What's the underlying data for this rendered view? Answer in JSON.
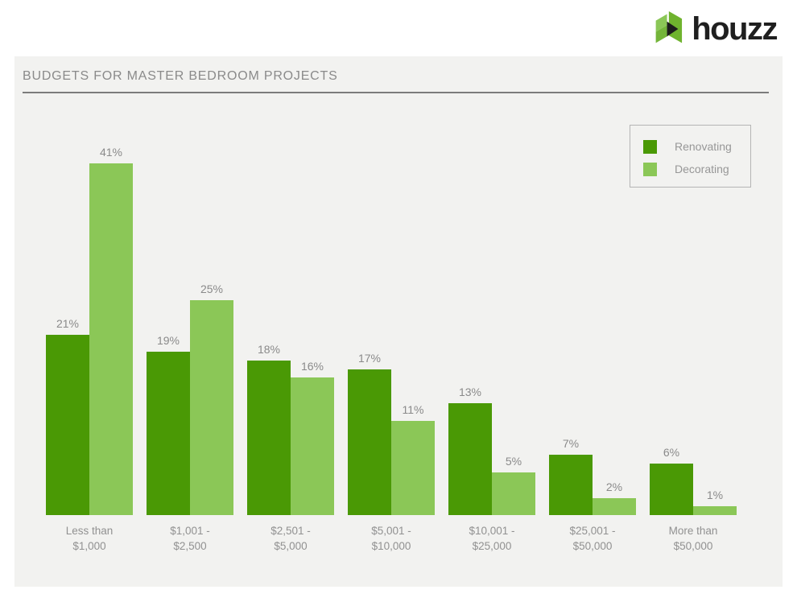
{
  "page": {
    "background": "#ffffff",
    "panel_background": "#f2f2f0"
  },
  "header": {
    "logo_text": "houzz"
  },
  "legend": {
    "items": [
      {
        "label": "Renovating",
        "color": "#4a9905"
      },
      {
        "label": "Decorating",
        "color": "#8bc757"
      }
    ]
  },
  "chart_data": {
    "type": "bar",
    "title": "BUDGETS FOR MASTER BEDROOM PROJECTS",
    "categories": [
      [
        "Less than",
        "$1,000"
      ],
      [
        "$1,001 -",
        "$2,500"
      ],
      [
        "$2,501 -",
        "$5,000"
      ],
      [
        "$5,001 -",
        "$10,000"
      ],
      [
        "$10,001 -",
        "$25,000"
      ],
      [
        "$25,001 -",
        "$50,000"
      ],
      [
        "More than",
        "$50,000"
      ]
    ],
    "series": [
      {
        "name": "Renovating",
        "color": "#4a9905",
        "values": [
          21,
          19,
          18,
          17,
          13,
          7,
          6
        ]
      },
      {
        "name": "Decorating",
        "color": "#8bc757",
        "values": [
          41,
          25,
          16,
          11,
          5,
          2,
          1
        ]
      }
    ],
    "value_suffix": "%",
    "data_labels": true,
    "ylim": [
      0,
      45
    ],
    "grid": false,
    "legend_position": "top-right",
    "colors": {
      "title_text": "#8a8a8a",
      "label_text": "#919191",
      "title_underline": "#7c7c7c"
    }
  }
}
